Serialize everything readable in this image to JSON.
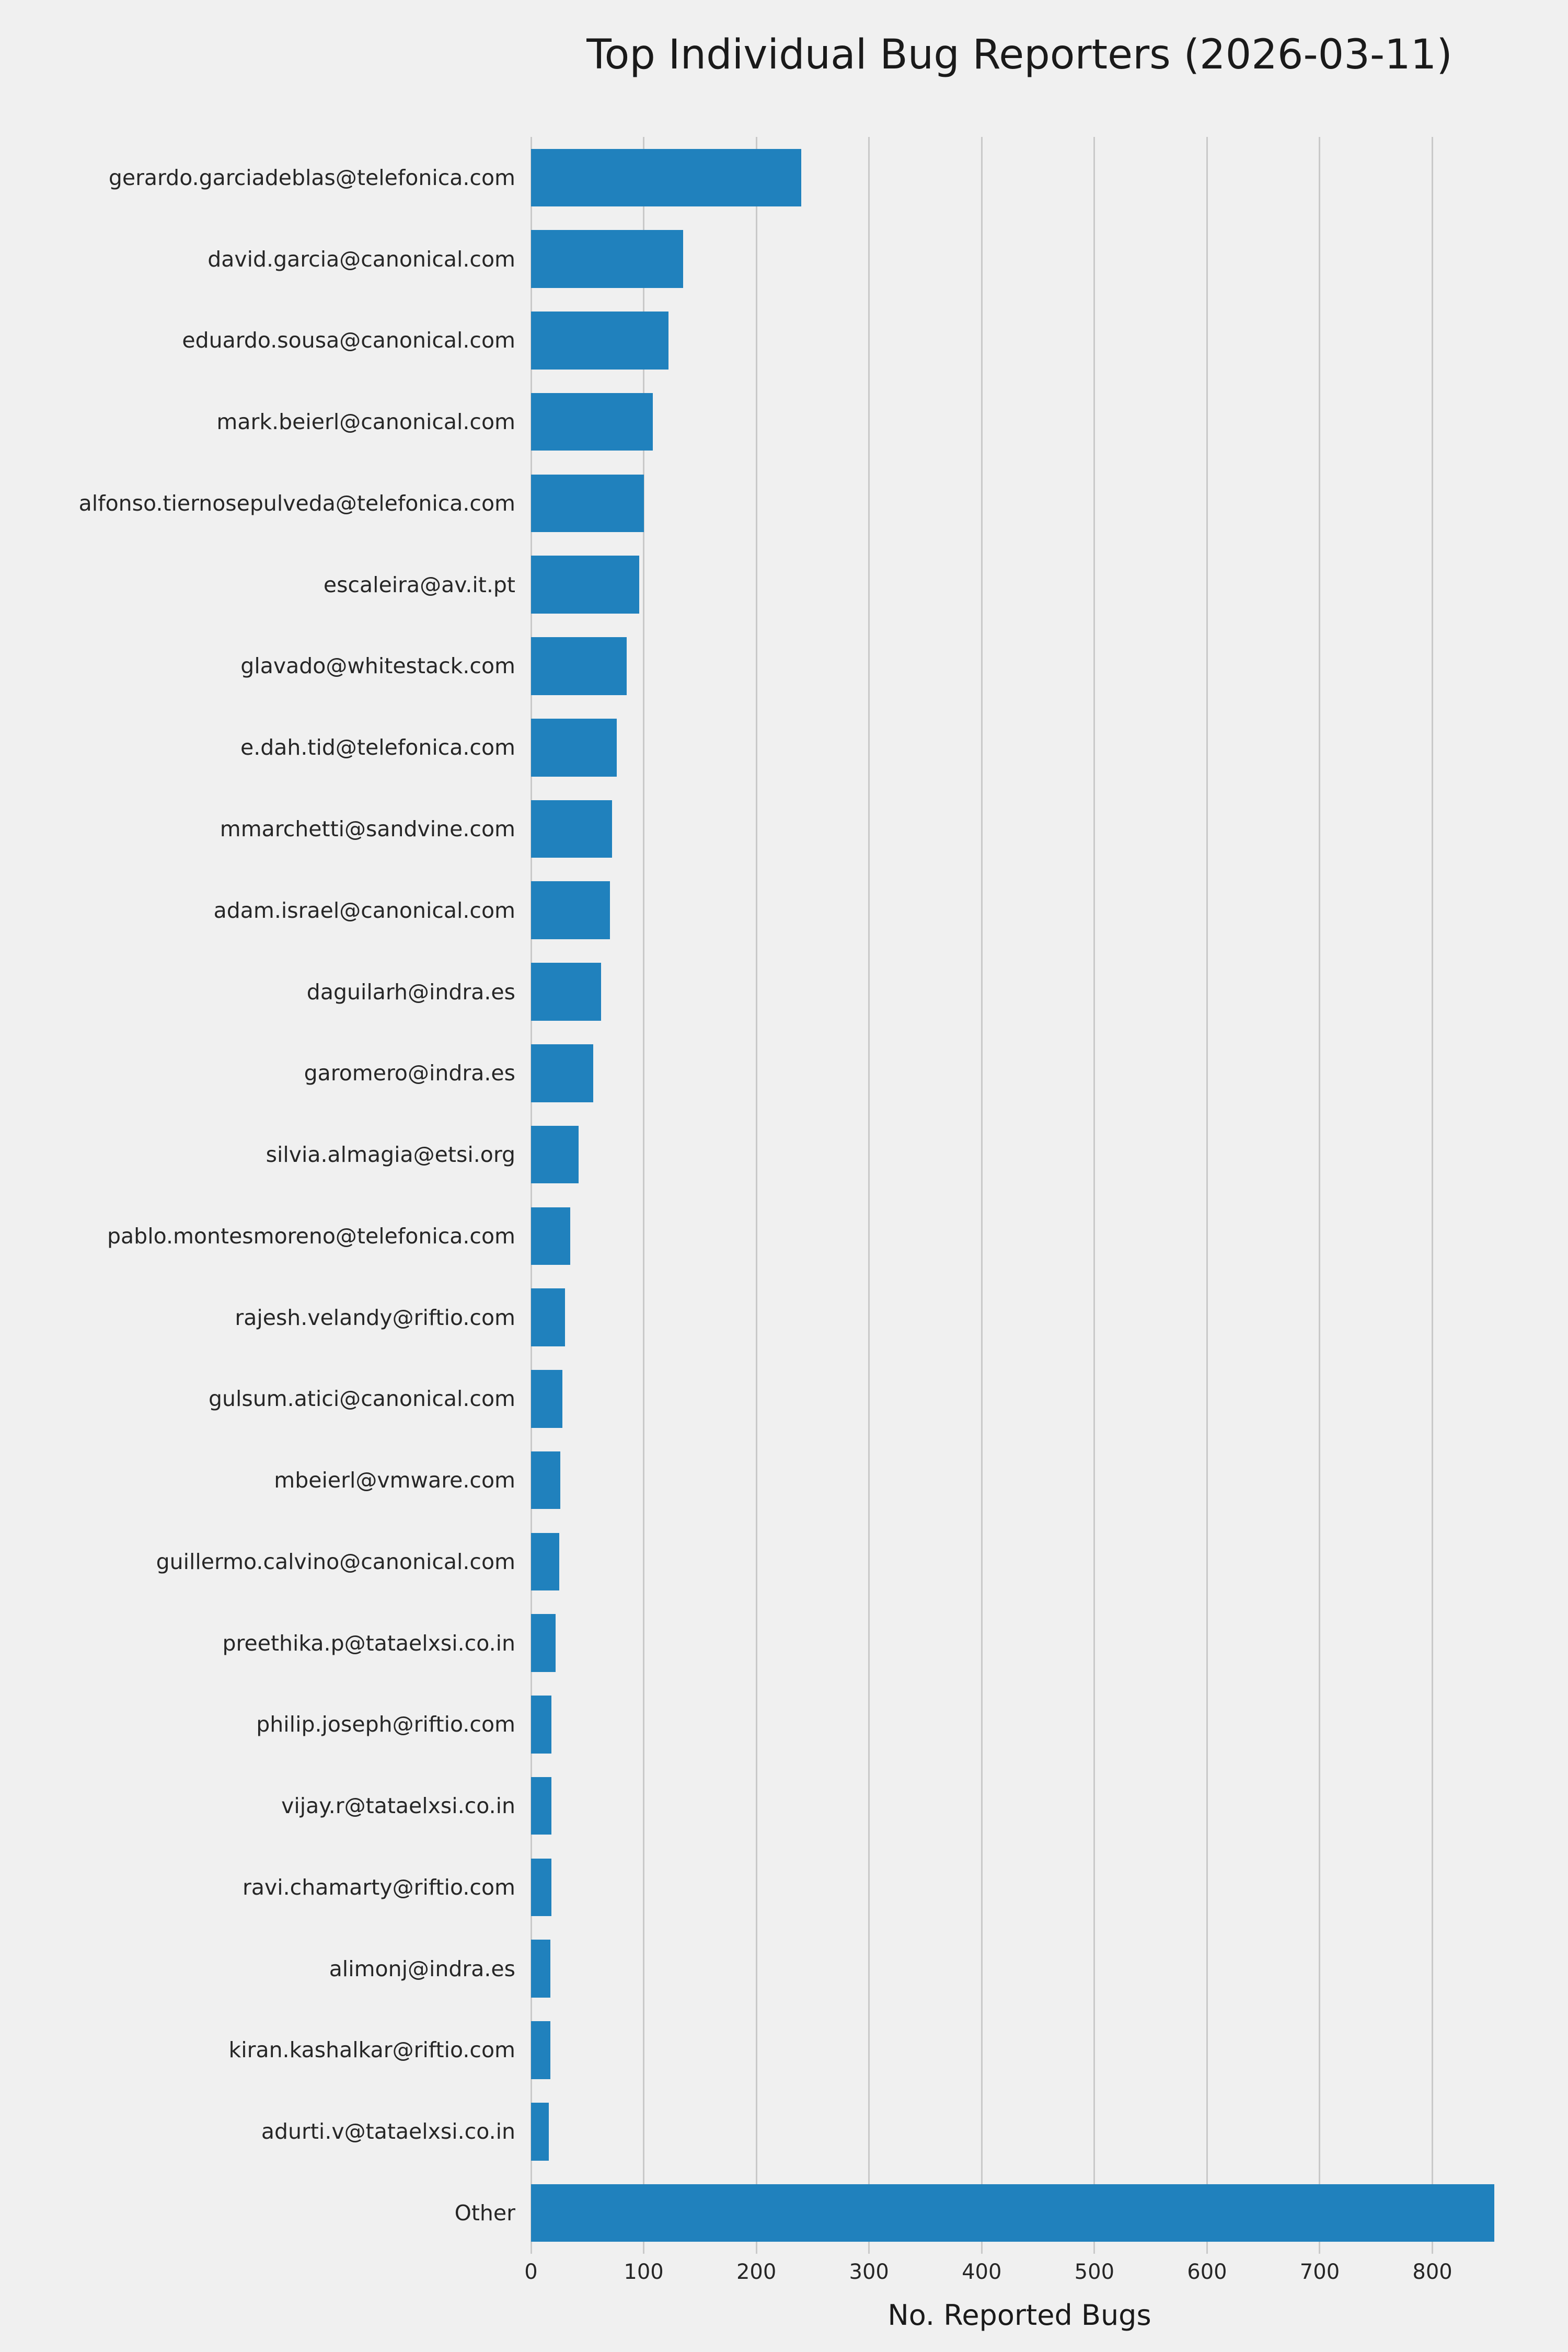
{
  "figure": {
    "background_color": "#f0f0f0"
  },
  "chart_data": {
    "type": "bar",
    "orientation": "horizontal",
    "title": "Top Individual Bug Reporters (2026-03-11)",
    "xlabel": "No. Reported Bugs",
    "ylabel": "",
    "xlim": [
      0,
      867
    ],
    "xticks": [
      0,
      100,
      200,
      300,
      400,
      500,
      600,
      700,
      800
    ],
    "grid": true,
    "legend": false,
    "bar_color": "#2081bd",
    "grid_color": "#c9c9c9",
    "categories": [
      "gerardo.garciadeblas@telefonica.com",
      "david.garcia@canonical.com",
      "eduardo.sousa@canonical.com",
      "mark.beierl@canonical.com",
      "alfonso.tiernosepulveda@telefonica.com",
      "escaleira@av.it.pt",
      "glavado@whitestack.com",
      "e.dah.tid@telefonica.com",
      "mmarchetti@sandvine.com",
      "adam.israel@canonical.com",
      "daguilarh@indra.es",
      "garomero@indra.es",
      "silvia.almagia@etsi.org",
      "pablo.montesmoreno@telefonica.com",
      "rajesh.velandy@riftio.com",
      "gulsum.atici@canonical.com",
      "mbeierl@vmware.com",
      "guillermo.calvino@canonical.com",
      "preethika.p@tataelxsi.co.in",
      "philip.joseph@riftio.com",
      "vijay.r@tataelxsi.co.in",
      "ravi.chamarty@riftio.com",
      "alimonj@indra.es",
      "kiran.kashalkar@riftio.com",
      "adurti.v@tataelxsi.co.in",
      "Other"
    ],
    "values": [
      240,
      135,
      122,
      108,
      100,
      96,
      85,
      76,
      72,
      70,
      62,
      55,
      42,
      35,
      30,
      28,
      26,
      25,
      22,
      18,
      18,
      18,
      17,
      17,
      16,
      855
    ]
  }
}
